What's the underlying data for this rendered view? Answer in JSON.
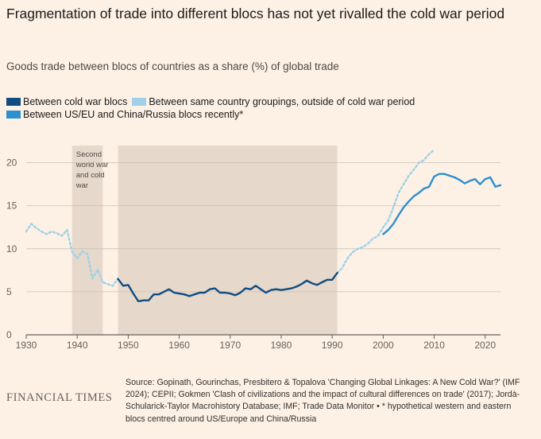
{
  "title": "Fragmentation of trade into different blocs has not yet rivalled the cold war period",
  "subtitle": "Goods trade between blocs of countries as a share (%) of global trade",
  "legend": {
    "cold_war": "Between cold war blocs",
    "same_groupings": "Between same country groupings, outside of cold war period",
    "recent": "Between US/EU and China/Russia blocs recently*"
  },
  "colors": {
    "cold_war": "#0f4c81",
    "same_groupings": "#9fd0e8",
    "recent": "#2b8fd0",
    "shade": "#e7d8cc",
    "background": "#fdf1e5"
  },
  "annotation": [
    "Second",
    "world war",
    "and cold",
    "war"
  ],
  "footer": {
    "brand": "FINANCIAL TIMES",
    "source": "Source: Gopinath, Gourinchas, Presbitero & Topalova 'Changing Global Linkages: A New Cold War?' (IMF 2024); CEPII; Gokmen 'Clash of civilizations and the impact of cultural differences on trade' (2017); Jordà-Schularick-Taylor Macrohistory Database; IMF; Trade Data Monitor • * hypothetical western and eastern blocs centred around US/Europe and China/Russia"
  },
  "chart_data": {
    "type": "line",
    "title": "Fragmentation of trade into different blocs has not yet rivalled the cold war period",
    "ylabel": "Goods trade between blocs of countries as a share (%) of global trade",
    "xlim": [
      1930,
      2023
    ],
    "ylim": [
      0,
      22
    ],
    "x_ticks": [
      1930,
      1940,
      1950,
      1960,
      1970,
      1980,
      1990,
      2000,
      2010,
      2020
    ],
    "y_ticks": [
      0,
      5,
      10,
      15,
      20
    ],
    "grid": "horizontal",
    "shaded_periods": [
      [
        1939,
        1945
      ],
      [
        1948,
        1991
      ]
    ],
    "series": [
      {
        "name": "Between same country groupings, outside of cold war period",
        "style": "dotted",
        "segments": [
          {
            "x": [
              1930,
              1931,
              1932,
              1933,
              1934,
              1935,
              1936,
              1937,
              1938,
              1939,
              1940,
              1941,
              1942,
              1943,
              1944,
              1945,
              1946,
              1947,
              1948
            ],
            "y": [
              12.0,
              12.9,
              12.4,
              12.0,
              11.7,
              12.0,
              11.8,
              11.5,
              12.2,
              9.6,
              8.9,
              9.7,
              9.4,
              6.5,
              7.6,
              6.1,
              5.9,
              5.7,
              6.5
            ]
          },
          {
            "x": [
              1991,
              1992,
              1993,
              1994,
              1995,
              1996,
              1997,
              1998,
              1999,
              2000,
              2001,
              2002,
              2003,
              2004,
              2005,
              2006,
              2007,
              2008,
              2009,
              2010
            ],
            "y": [
              7.2,
              7.8,
              8.9,
              9.6,
              10.0,
              10.2,
              10.6,
              11.2,
              11.5,
              12.5,
              13.3,
              14.8,
              16.5,
              17.5,
              18.5,
              19.2,
              20.0,
              20.3,
              21.0,
              21.5
            ]
          }
        ]
      },
      {
        "name": "Between cold war blocs",
        "style": "solid",
        "segments": [
          {
            "x": [
              1948,
              1949,
              1950,
              1951,
              1952,
              1953,
              1954,
              1955,
              1956,
              1957,
              1958,
              1959,
              1960,
              1961,
              1962,
              1963,
              1964,
              1965,
              1966,
              1967,
              1968,
              1969,
              1970,
              1971,
              1972,
              1973,
              1974,
              1975,
              1976,
              1977,
              1978,
              1979,
              1980,
              1981,
              1982,
              1983,
              1984,
              1985,
              1986,
              1987,
              1988,
              1989,
              1990,
              1991
            ],
            "y": [
              6.5,
              5.7,
              5.8,
              4.8,
              3.9,
              4.0,
              4.0,
              4.7,
              4.7,
              5.0,
              5.3,
              4.9,
              4.8,
              4.7,
              4.5,
              4.7,
              4.9,
              4.9,
              5.3,
              5.4,
              4.9,
              4.9,
              4.8,
              4.6,
              4.9,
              5.4,
              5.3,
              5.7,
              5.3,
              4.9,
              5.2,
              5.3,
              5.2,
              5.3,
              5.4,
              5.6,
              5.9,
              6.3,
              6.0,
              5.8,
              6.1,
              6.4,
              6.4,
              7.2
            ]
          }
        ]
      },
      {
        "name": "Between US/EU and China/Russia blocs recently*",
        "style": "solid",
        "segments": [
          {
            "x": [
              2000,
              2001,
              2002,
              2003,
              2004,
              2005,
              2006,
              2007,
              2008,
              2009,
              2010,
              2011,
              2012,
              2013,
              2014,
              2015,
              2016,
              2017,
              2018,
              2019,
              2020,
              2021,
              2022,
              2023
            ],
            "y": [
              11.7,
              12.2,
              12.9,
              13.9,
              14.8,
              15.5,
              16.1,
              16.5,
              17.0,
              17.2,
              18.4,
              18.7,
              18.7,
              18.5,
              18.3,
              18.0,
              17.6,
              17.9,
              18.1,
              17.5,
              18.1,
              18.3,
              17.2,
              17.4
            ]
          }
        ]
      }
    ]
  }
}
